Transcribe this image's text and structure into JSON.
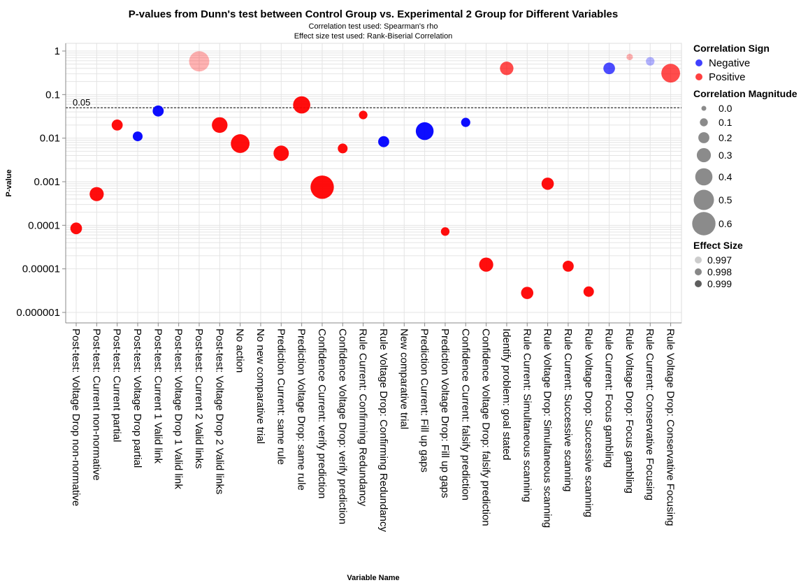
{
  "chart_data": {
    "type": "scatter",
    "title": "P-values from Dunn's test between Control Group vs. Experimental 2 Group for Different Variables",
    "subtitle": [
      "Correlation test used: Spearman's rho",
      "Effect size test used: Rank-Biserial Correlation"
    ],
    "xlabel": "Variable Name",
    "ylabel": "P-value",
    "y_scale": "log",
    "ylim": [
      6e-07,
      1.5
    ],
    "y_ticks": [
      {
        "value": 1,
        "label": "1"
      },
      {
        "value": 0.1,
        "label": "0.1"
      },
      {
        "value": 0.01,
        "label": "0.01"
      },
      {
        "value": 0.001,
        "label": "0.001"
      },
      {
        "value": 0.0001,
        "label": "0.0001"
      },
      {
        "value": 1e-05,
        "label": "0.00001"
      },
      {
        "value": 1e-06,
        "label": "0.000001"
      }
    ],
    "grid": true,
    "threshold": {
      "value": 0.05,
      "label": "0.05",
      "style": "dashed"
    },
    "categories": [
      "Post-test: Voltage Drop non-normative",
      "Post-test: Current non-normative",
      "Post-test: Current partial",
      "Post-test: Voltage Drop partial",
      "Post-test: Current 1 Valid link",
      "Post-test: Voltage Drop 1 Valid link",
      "Post-test: Current 2 Valid links",
      "Post-test: Voltage Drop 2 Valid links",
      "No action",
      "No new comparative trial",
      "Prediction Current: same rule",
      "Prediction Voltage Drop: same rule",
      "Confidence Current: verify prediction",
      "Confidence Voltage Drop: verify prediction",
      "Rule Current: Confirming Redundancy",
      "Rule Voltage Drop: Confirming Redundancy",
      "New comparative trial",
      "Prediction Current: Fill up gaps",
      "Prediction Voltage Drop: Fill up gaps",
      "Confidence Current: falsify prediction",
      "Confidence Voltage Drop: falsify prediction",
      "Identify problem: goal stated",
      "Rule Current: Simultaneous scanning",
      "Rule Voltage Drop: Simultaneous scanning",
      "Rule Current: Successive scanning",
      "Rule Voltage Drop: Successive scanning",
      "Rule Current: Focus gambling",
      "Rule Voltage Drop: Focus gambling",
      "Rule Current: Conservative Focusing",
      "Rule Voltage Drop: Conservative Focusing"
    ],
    "points": [
      {
        "category": "Post-test: Voltage Drop non-normative",
        "p": 8.5e-05,
        "sign": "Positive",
        "magnitude": 0.22,
        "effect": 0.999
      },
      {
        "category": "Post-test: Current non-normative",
        "p": 0.00052,
        "sign": "Positive",
        "magnitude": 0.3,
        "effect": 0.999
      },
      {
        "category": "Post-test: Current partial",
        "p": 0.02,
        "sign": "Positive",
        "magnitude": 0.2,
        "effect": 0.999
      },
      {
        "category": "Post-test: Voltage Drop partial",
        "p": 0.011,
        "sign": "Negative",
        "magnitude": 0.16,
        "effect": 0.999
      },
      {
        "category": "Post-test: Current 1 Valid link",
        "p": 0.042,
        "sign": "Negative",
        "magnitude": 0.2,
        "effect": 0.999
      },
      {
        "category": "Post-test: Current 2 Valid links",
        "p": 0.58,
        "sign": "Positive",
        "magnitude": 0.5,
        "effect": 0.997
      },
      {
        "category": "Post-test: Voltage Drop 2 Valid links",
        "p": 0.02,
        "sign": "Positive",
        "magnitude": 0.35,
        "effect": 0.999
      },
      {
        "category": "No action",
        "p": 0.0075,
        "sign": "Positive",
        "magnitude": 0.45,
        "effect": 0.999
      },
      {
        "category": "Prediction Current: same rule",
        "p": 0.0045,
        "sign": "Positive",
        "magnitude": 0.34,
        "effect": 0.999
      },
      {
        "category": "Prediction Voltage Drop: same rule",
        "p": 0.058,
        "sign": "Positive",
        "magnitude": 0.4,
        "effect": 0.999
      },
      {
        "category": "Confidence Current: verify prediction",
        "p": 0.00075,
        "sign": "Positive",
        "magnitude": 0.6,
        "effect": 0.999
      },
      {
        "category": "Confidence Voltage Drop: verify prediction",
        "p": 0.0058,
        "sign": "Positive",
        "magnitude": 0.16,
        "effect": 0.999
      },
      {
        "category": "Rule Current: Confirming Redundancy",
        "p": 0.034,
        "sign": "Positive",
        "magnitude": 0.12,
        "effect": 0.999
      },
      {
        "category": "Rule Voltage Drop: Confirming Redundancy",
        "p": 0.0083,
        "sign": "Negative",
        "magnitude": 0.2,
        "effect": 0.999
      },
      {
        "category": "Prediction Current: Fill up gaps",
        "p": 0.0145,
        "sign": "Negative",
        "magnitude": 0.42,
        "effect": 0.999
      },
      {
        "category": "Prediction Voltage Drop: Fill up gaps",
        "p": 7.2e-05,
        "sign": "Positive",
        "magnitude": 0.12,
        "effect": 0.999
      },
      {
        "category": "Confidence Current: falsify prediction",
        "p": 0.023,
        "sign": "Negative",
        "magnitude": 0.14,
        "effect": 0.999
      },
      {
        "category": "Confidence Voltage Drop: falsify prediction",
        "p": 1.25e-05,
        "sign": "Positive",
        "magnitude": 0.3,
        "effect": 0.999
      },
      {
        "category": "Identify problem: goal stated",
        "p": 0.4,
        "sign": "Positive",
        "magnitude": 0.28,
        "effect": 0.998
      },
      {
        "category": "Rule Current: Simultaneous scanning",
        "p": 2.8e-06,
        "sign": "Positive",
        "magnitude": 0.24,
        "effect": 0.999
      },
      {
        "category": "Rule Voltage Drop: Simultaneous scanning",
        "p": 0.0009,
        "sign": "Positive",
        "magnitude": 0.24,
        "effect": 0.999
      },
      {
        "category": "Rule Current: Successive scanning",
        "p": 1.15e-05,
        "sign": "Positive",
        "magnitude": 0.2,
        "effect": 0.999
      },
      {
        "category": "Rule Voltage Drop: Successive scanning",
        "p": 3e-06,
        "sign": "Positive",
        "magnitude": 0.18,
        "effect": 0.999
      },
      {
        "category": "Rule Current: Focus gambling",
        "p": 0.4,
        "sign": "Negative",
        "magnitude": 0.22,
        "effect": 0.998
      },
      {
        "category": "Rule Voltage Drop: Focus gambling",
        "p": 0.73,
        "sign": "Positive",
        "magnitude": 0.05,
        "effect": 0.997
      },
      {
        "category": "Rule Current: Conservative Focusing",
        "p": 0.58,
        "sign": "Negative",
        "magnitude": 0.12,
        "effect": 0.997
      },
      {
        "category": "Rule Voltage Drop: Conservative Focusing",
        "p": 0.31,
        "sign": "Positive",
        "magnitude": 0.45,
        "effect": 0.998
      }
    ],
    "colors": {
      "Negative": "#0000ff",
      "Positive": "#ff0000"
    },
    "legend": {
      "placement": "right",
      "sign": {
        "title": "Correlation Sign",
        "entries": [
          "Negative",
          "Positive"
        ]
      },
      "magnitude": {
        "title": "Correlation Magnitude",
        "values": [
          0.0,
          0.1,
          0.2,
          0.3,
          0.4,
          0.5,
          0.6
        ],
        "labels": [
          "0.0",
          "0.1",
          "0.2",
          "0.3",
          "0.4",
          "0.5",
          "0.6"
        ]
      },
      "effect": {
        "title": "Effect Size",
        "values": [
          0.997,
          0.998,
          0.999
        ],
        "labels": [
          "0.997",
          "0.998",
          "0.999"
        ]
      }
    }
  }
}
